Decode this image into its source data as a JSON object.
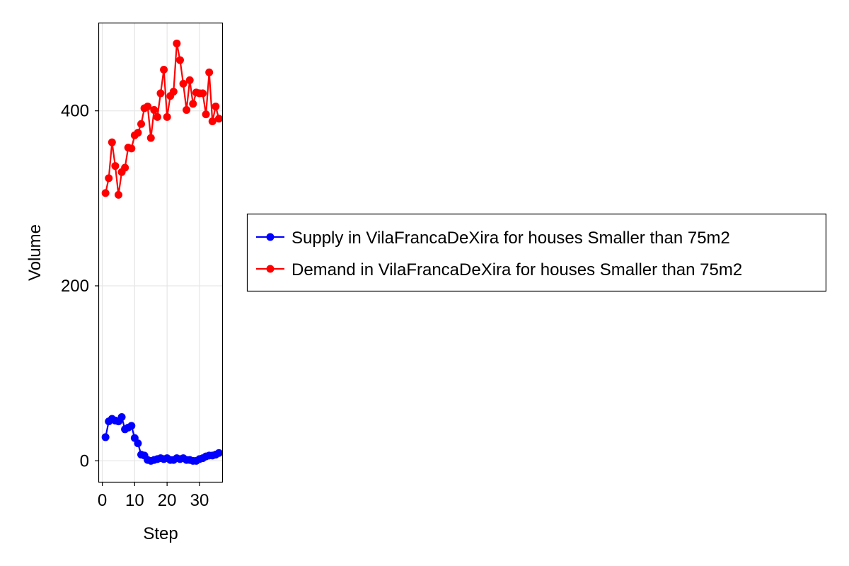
{
  "chart_data": {
    "type": "line",
    "title": "",
    "xlabel": "Step",
    "ylabel": "Volume",
    "xlim": [
      -1,
      37
    ],
    "ylim": [
      -24,
      500
    ],
    "xticks": [
      0,
      10,
      20,
      30
    ],
    "yticks": [
      0,
      200,
      400
    ],
    "grid": true,
    "legend_position": "right",
    "x": [
      1,
      2,
      3,
      4,
      5,
      6,
      7,
      8,
      9,
      10,
      11,
      12,
      13,
      14,
      15,
      16,
      17,
      18,
      19,
      20,
      21,
      22,
      23,
      24,
      25,
      26,
      27,
      28,
      29,
      30,
      31,
      32,
      33,
      34,
      35,
      36
    ],
    "series": [
      {
        "name": "Supply in VilaFrancaDeXira for houses Smaller than 75m2",
        "color": "#0000ff",
        "values": [
          27,
          45,
          48,
          46,
          45,
          50,
          36,
          38,
          40,
          26,
          20,
          7,
          6,
          1,
          0,
          1,
          2,
          3,
          2,
          3,
          1,
          1,
          3,
          2,
          3,
          1,
          1,
          0,
          0,
          2,
          3,
          5,
          6,
          6,
          7,
          9
        ]
      },
      {
        "name": "Demand in VilaFrancaDeXira for houses Smaller than 75m2",
        "color": "#ff0000",
        "values": [
          306,
          323,
          364,
          337,
          304,
          330,
          335,
          358,
          357,
          372,
          375,
          385,
          403,
          405,
          369,
          401,
          393,
          420,
          447,
          393,
          417,
          422,
          477,
          458,
          431,
          401,
          435,
          408,
          421,
          420,
          420,
          396,
          444,
          388,
          405,
          391
        ]
      }
    ]
  }
}
